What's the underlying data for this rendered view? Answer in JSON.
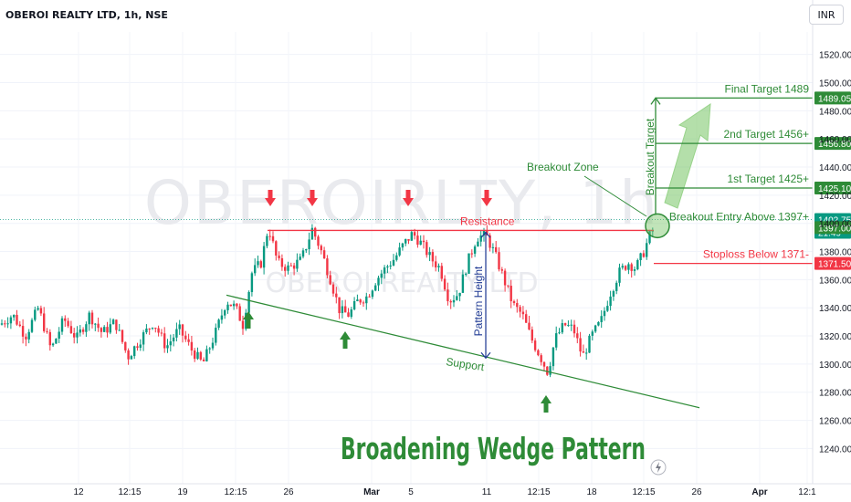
{
  "header": {
    "symbol": "OBEROI REALTY LTD, 1h, NSE",
    "currency": "INR"
  },
  "watermark": {
    "main": "OBEROIRLTY, 1h",
    "sub": "OBEROI REALTY LTD"
  },
  "colors": {
    "up": "#089981",
    "down": "#f23645",
    "annotation_green": "#2e8b37",
    "annotation_red": "#f23645",
    "pattern_blue": "#1f3a93"
  },
  "chart_data": {
    "type": "candlestick",
    "title": "Broadening Wedge Pattern",
    "ylim": [
      1226,
      1536
    ],
    "y_ticks": [
      1240,
      1260,
      1280,
      1300,
      1320,
      1340,
      1360,
      1380,
      1400,
      1420,
      1440,
      1460,
      1480,
      1500,
      1520
    ],
    "y_tick_labels": [
      "1240.00",
      "1260.00",
      "1280.00",
      "1300.00",
      "1320.00",
      "1340.00",
      "1360.00",
      "1380.00",
      "1400.00",
      "1420.00",
      "1440.00",
      "1460.00",
      "1480.00",
      "1500.00",
      "1520.00"
    ],
    "x_tick_labels": [
      "12",
      "12:15",
      "19",
      "12:15",
      "26",
      "Mar",
      "5",
      "11",
      "12:15",
      "18",
      "12:15",
      "26",
      "Apr",
      "12:1"
    ],
    "price_path": [
      [
        0,
        1328
      ],
      [
        14,
        1335
      ],
      [
        28,
        1320
      ],
      [
        42,
        1340
      ],
      [
        56,
        1310
      ],
      [
        70,
        1332
      ],
      [
        84,
        1318
      ],
      [
        98,
        1335
      ],
      [
        112,
        1322
      ],
      [
        126,
        1330
      ],
      [
        140,
        1305
      ],
      [
        154,
        1318
      ],
      [
        168,
        1330
      ],
      [
        182,
        1312
      ],
      [
        196,
        1325
      ],
      [
        210,
        1310
      ],
      [
        222,
        1300
      ],
      [
        236,
        1322
      ],
      [
        248,
        1345
      ],
      [
        258,
        1340
      ],
      [
        266,
        1328
      ],
      [
        276,
        1365
      ],
      [
        286,
        1372
      ],
      [
        294,
        1398
      ],
      [
        304,
        1372
      ],
      [
        316,
        1368
      ],
      [
        330,
        1374
      ],
      [
        342,
        1396
      ],
      [
        352,
        1380
      ],
      [
        362,
        1360
      ],
      [
        372,
        1338
      ],
      [
        382,
        1335
      ],
      [
        392,
        1345
      ],
      [
        402,
        1348
      ],
      [
        412,
        1360
      ],
      [
        422,
        1368
      ],
      [
        432,
        1375
      ],
      [
        442,
        1385
      ],
      [
        452,
        1393
      ],
      [
        462,
        1385
      ],
      [
        472,
        1375
      ],
      [
        482,
        1368
      ],
      [
        492,
        1345
      ],
      [
        502,
        1350
      ],
      [
        512,
        1372
      ],
      [
        522,
        1390
      ],
      [
        532,
        1392
      ],
      [
        542,
        1378
      ],
      [
        552,
        1360
      ],
      [
        562,
        1342
      ],
      [
        572,
        1335
      ],
      [
        582,
        1318
      ],
      [
        592,
        1305
      ],
      [
        600,
        1294
      ],
      [
        608,
        1318
      ],
      [
        618,
        1328
      ],
      [
        628,
        1325
      ],
      [
        638,
        1305
      ],
      [
        648,
        1320
      ],
      [
        658,
        1330
      ],
      [
        668,
        1350
      ],
      [
        678,
        1365
      ],
      [
        688,
        1372
      ],
      [
        696,
        1368
      ],
      [
        704,
        1378
      ],
      [
        712,
        1392
      ],
      [
        718,
        1398
      ]
    ],
    "levels": {
      "resistance": 1395,
      "breakout_entry": 1397,
      "stoploss": 1371.5,
      "target1": 1425.1,
      "target2": 1456.8,
      "final_target": 1489.05
    },
    "price_tags": [
      {
        "value": 1489.05,
        "label": "1489.05"
      },
      {
        "value": 1456.8,
        "label": "1456.80"
      },
      {
        "value": 1425.1,
        "label": "1425.10"
      },
      {
        "value": 1402.75,
        "label": "1402.75",
        "sub": "21:49"
      },
      {
        "value": 1397.0,
        "label": "1397.00"
      },
      {
        "value": 1371.5,
        "label": "1371.50"
      }
    ],
    "annotations": {
      "resistance": "Resistance",
      "support": "Support",
      "pattern_height": "Pattern Height",
      "breakout_zone": "Breakout Zone",
      "breakout_target": "Breakout Target",
      "final_target": "Final Target 1489",
      "target2": "2nd Target 1456+",
      "target1": "1st Target 1425+",
      "entry": "Breakout Entry Above 1397+",
      "stoploss": "Stoploss Below 1371-"
    }
  }
}
